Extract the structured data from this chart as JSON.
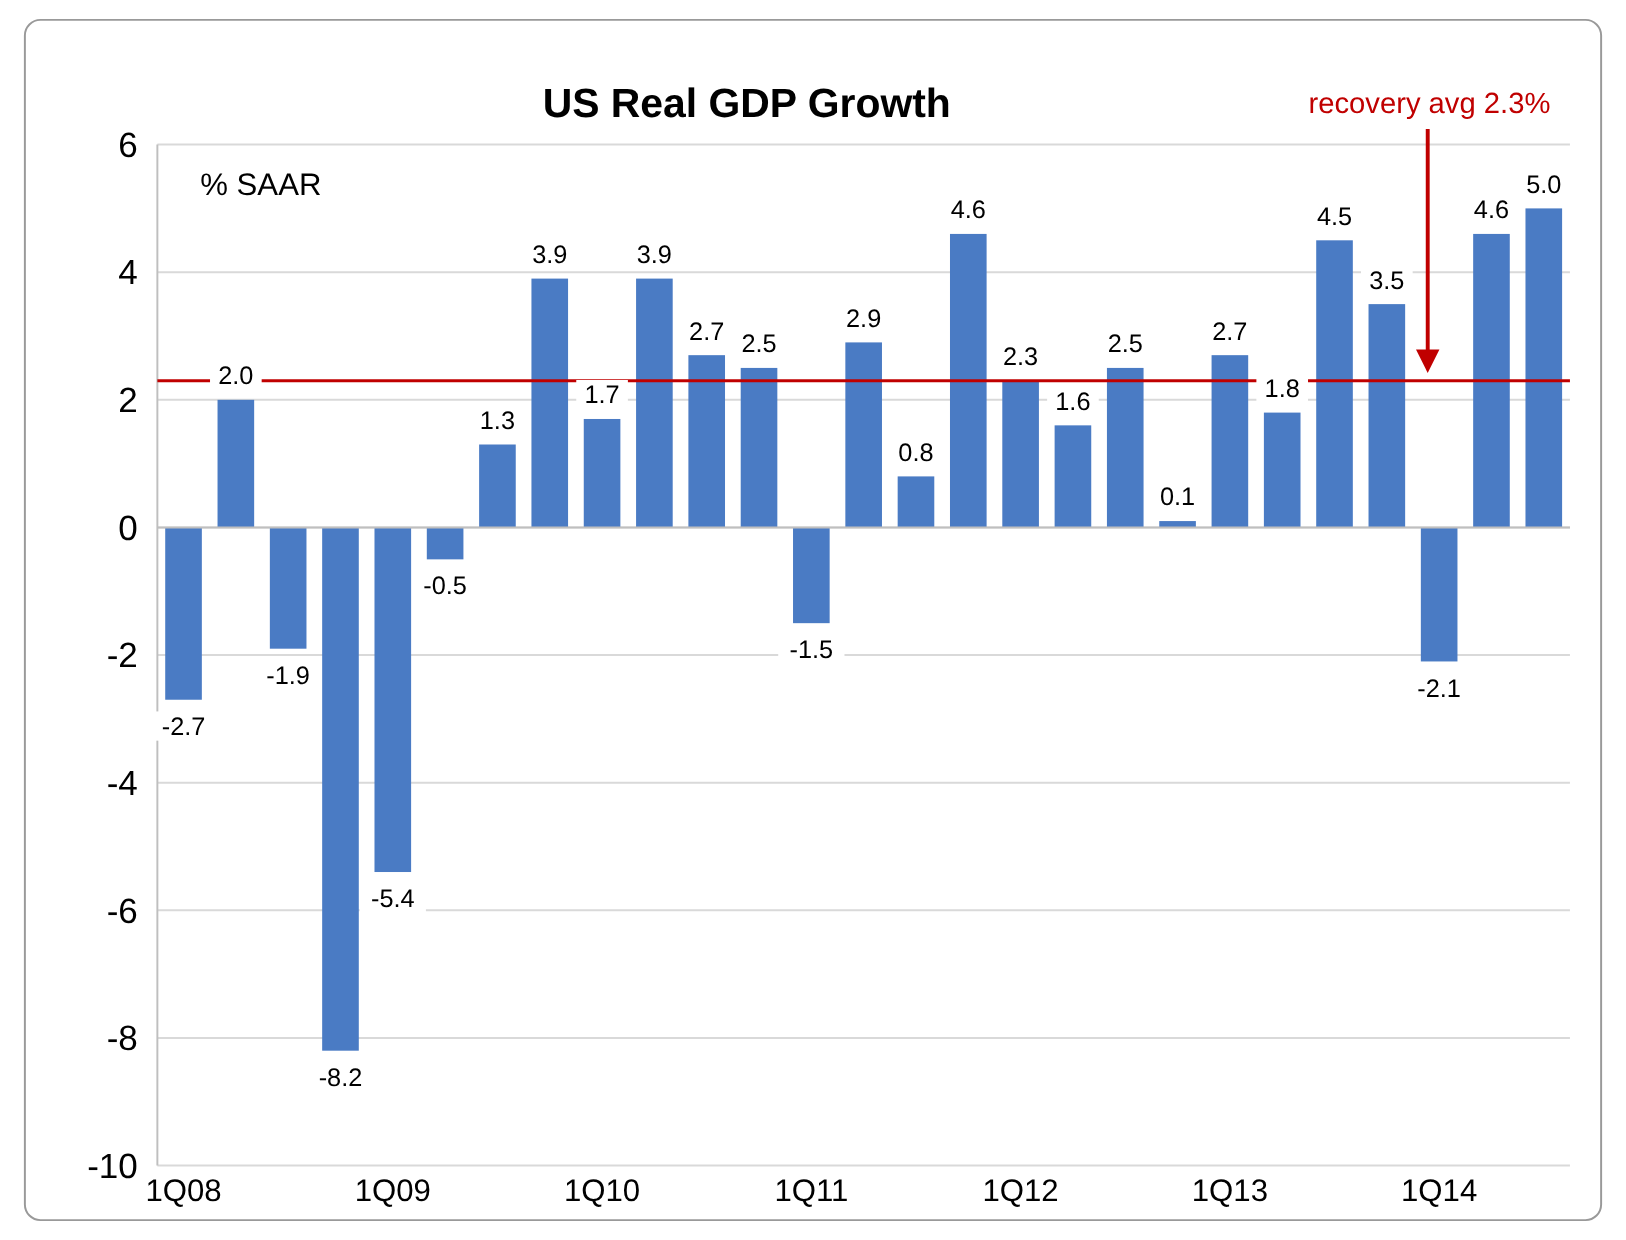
{
  "chart_data": {
    "type": "bar",
    "title": "US Real GDP Growth",
    "ylabel": "% SAAR",
    "categories": [
      "1Q08",
      null,
      null,
      null,
      "1Q09",
      null,
      null,
      null,
      "1Q10",
      null,
      null,
      null,
      "1Q11",
      null,
      null,
      null,
      "1Q12",
      null,
      null,
      null,
      "1Q13",
      null,
      null,
      null,
      "1Q14",
      null,
      null
    ],
    "values": [
      -2.7,
      2.0,
      -1.9,
      -8.2,
      -5.4,
      -0.5,
      1.3,
      3.9,
      1.7,
      3.9,
      2.7,
      2.5,
      -1.5,
      2.9,
      0.8,
      4.6,
      2.3,
      1.6,
      2.5,
      0.1,
      2.7,
      1.8,
      4.5,
      3.5,
      -2.1,
      4.6,
      5.0
    ],
    "value_labels": [
      "-2.7",
      "2.0",
      "-1.9",
      "-8.2",
      "-5.4",
      "-0.5",
      "1.3",
      "3.9",
      "1.7",
      "3.9",
      "2.7",
      "2.5",
      "-1.5",
      "2.9",
      "0.8",
      "4.6",
      "2.3",
      "1.6",
      "2.5",
      "0.1",
      "2.7",
      "1.8",
      "4.5",
      "3.5",
      "-2.1",
      "4.6",
      "5.0"
    ],
    "color": "#4a7bc4",
    "ylim": [
      -10,
      6
    ],
    "yticks": [
      -10,
      -8,
      -6,
      -4,
      -2,
      0,
      2,
      4,
      6
    ],
    "grid": "y",
    "ref_lines": [
      {
        "axis": "y",
        "value": 2.3,
        "label": "recovery avg 2.3%",
        "color": "#c00000"
      }
    ]
  }
}
